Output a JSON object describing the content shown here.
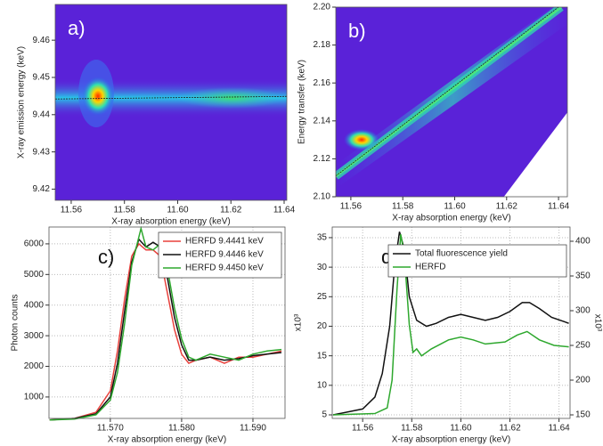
{
  "chart_data": [
    {
      "type": "heatmap",
      "panel_label": "a)",
      "x_label": "X-ray absorption energy (keV)",
      "y_label": "X-ray emission energy (keV)",
      "xlim": [
        11.554,
        11.641
      ],
      "ylim": [
        9.417,
        9.4696
      ],
      "xticks": [
        11.56,
        11.58,
        {
          "value": 11.6,
          "label": "11.60"
        },
        11.62,
        11.64
      ],
      "yticks": [
        9.42,
        9.43,
        9.44,
        9.45,
        9.46
      ],
      "series": [
        {
          "color": "#222222",
          "x": [
            11.554,
            11.641
          ],
          "values": [
            9.4442,
            9.4449
          ]
        }
      ]
    },
    {
      "type": "heatmap",
      "panel_label": "b)",
      "x_label": "X-ray absorption energy (keV)",
      "y_label": "Energy transfer (keV)",
      "xlim": [
        11.5542,
        11.6434
      ],
      "ylim": [
        2.1,
        2.2
      ],
      "xticks": [
        11.56,
        11.58,
        {
          "value": 11.6,
          "label": "11.60"
        },
        11.62,
        11.64
      ],
      "yticks": [
        {
          "value": 2.1,
          "label": "2.10"
        },
        2.12,
        2.14,
        2.16,
        2.18,
        {
          "value": 2.2,
          "label": "2.20"
        }
      ],
      "series": [
        {
          "color": "#222222",
          "x": [
            11.5542,
            11.64
          ],
          "values": [
            2.111,
            2.2
          ]
        }
      ]
    },
    {
      "type": "line",
      "panel_label": "c)",
      "x_label": "X-ray absorption energy (keV)",
      "y_label": "Photon counts",
      "xlim": [
        11.5614,
        11.5945
      ],
      "ylim": [
        300,
        6550
      ],
      "grid": true,
      "legend": "upper right",
      "xticks": [
        {
          "value": 11.57,
          "label": "11.570"
        },
        {
          "value": 11.58,
          "label": "11.580"
        },
        {
          "value": 11.59,
          "label": "11.590"
        }
      ],
      "yticks": [
        1000,
        2000,
        3000,
        4000,
        5000,
        6000
      ],
      "series": [
        {
          "name": "HERFD 9.4441 keV",
          "color": "#e8413c",
          "x": [
            11.5615,
            11.565,
            11.568,
            11.57,
            11.571,
            11.572,
            11.573,
            11.574,
            11.575,
            11.576,
            11.577,
            11.578,
            11.579,
            11.58,
            11.581,
            11.582,
            11.584,
            11.586,
            11.588,
            11.59,
            11.592,
            11.594
          ],
          "values": [
            250,
            300,
            500,
            1200,
            2500,
            4200,
            5600,
            6000,
            5800,
            5800,
            5600,
            4400,
            3200,
            2400,
            2100,
            2200,
            2300,
            2100,
            2300,
            2300,
            2400,
            2500
          ]
        },
        {
          "name": "HERFD 9.4446 keV",
          "color": "#111111",
          "x": [
            11.5615,
            11.565,
            11.568,
            11.57,
            11.571,
            11.572,
            11.573,
            11.574,
            11.575,
            11.576,
            11.577,
            11.578,
            11.579,
            11.58,
            11.581,
            11.582,
            11.584,
            11.586,
            11.588,
            11.59,
            11.592,
            11.594
          ],
          "values": [
            250,
            300,
            450,
            1000,
            2100,
            3800,
            5400,
            6150,
            5900,
            6050,
            5900,
            4900,
            3600,
            2700,
            2200,
            2200,
            2300,
            2200,
            2250,
            2350,
            2400,
            2450
          ]
        },
        {
          "name": "HERFD 9.4450 keV",
          "color": "#2ea82e",
          "x": [
            11.5615,
            11.565,
            11.568,
            11.57,
            11.571,
            11.572,
            11.573,
            11.5743,
            11.575,
            11.576,
            11.577,
            11.578,
            11.579,
            11.58,
            11.581,
            11.582,
            11.584,
            11.586,
            11.588,
            11.59,
            11.592,
            11.594
          ],
          "values": [
            250,
            280,
            420,
            900,
            1800,
            3400,
            5300,
            6500,
            5900,
            5800,
            6000,
            5200,
            3900,
            2900,
            2300,
            2200,
            2400,
            2300,
            2200,
            2400,
            2500,
            2550
          ]
        }
      ]
    },
    {
      "type": "line",
      "panel_label": "d)",
      "x_label": "X-ray absorption energy (keV)",
      "y_label": "x10³",
      "y2_label": "x10³",
      "xlim": [
        11.5476,
        11.6445
      ],
      "ylim": [
        4.4,
        36.8
      ],
      "y2lim": [
        144.9,
        420.5
      ],
      "grid": true,
      "legend": "upper right",
      "xticks": [
        11.56,
        11.58,
        {
          "value": 11.6,
          "label": "11.60"
        },
        11.62,
        11.64
      ],
      "yticks": [
        5,
        10,
        15,
        20,
        25,
        30,
        35
      ],
      "y2ticks": [
        150,
        200,
        250,
        300,
        350,
        400
      ],
      "series": [
        {
          "name": "Total fluorescence yield",
          "color": "#111111",
          "x": [
            11.548,
            11.56,
            11.565,
            11.568,
            11.571,
            11.573,
            11.575,
            11.577,
            11.579,
            11.582,
            11.586,
            11.59,
            11.595,
            11.6,
            11.605,
            11.61,
            11.615,
            11.62,
            11.625,
            11.628,
            11.632,
            11.637,
            11.642,
            11.644
          ],
          "values": [
            5,
            6,
            8,
            12,
            20,
            30,
            36,
            33,
            25,
            21,
            20,
            20.5,
            21.5,
            22,
            21.5,
            21,
            21.5,
            22.5,
            24,
            24,
            23,
            21.5,
            20.8,
            20.5
          ]
        },
        {
          "name": "HERFD",
          "color": "#2ea82e",
          "axis": "y2",
          "x": [
            11.548,
            11.565,
            11.57,
            11.572,
            11.574,
            11.5755,
            11.577,
            11.579,
            11.5805,
            11.582,
            11.584,
            11.588,
            11.595,
            11.6,
            11.605,
            11.61,
            11.618,
            11.623,
            11.627,
            11.632,
            11.638,
            11.644
          ],
          "values": [
            150,
            152,
            160,
            200,
            330,
            410,
            380,
            280,
            240,
            245,
            235,
            245,
            258,
            262,
            258,
            252,
            255,
            265,
            270,
            258,
            250,
            248
          ]
        }
      ]
    }
  ]
}
